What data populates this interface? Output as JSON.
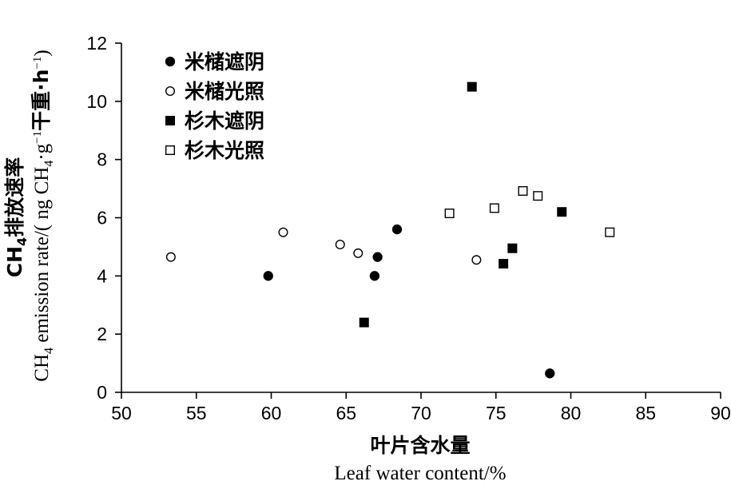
{
  "chart_data": {
    "type": "scatter",
    "xlabel_cn": "叶片含水量",
    "xlabel_en": "Leaf water content/%",
    "ylabel_cn_parts": [
      "CH",
      "4",
      "排放速率"
    ],
    "ylabel_en_parts": [
      "CH",
      "4",
      " emission rate/( ng CH",
      "4",
      "·g",
      "−1",
      "干重·h",
      "−1",
      ")"
    ],
    "xlim": [
      50,
      90
    ],
    "ylim": [
      0,
      12
    ],
    "x_ticks": [
      50,
      55,
      60,
      65,
      70,
      75,
      80,
      85,
      90
    ],
    "y_ticks": [
      0,
      2,
      4,
      6,
      8,
      10,
      12
    ],
    "x_tick_labels": [
      "50",
      "55",
      "60",
      "65",
      "70",
      "75",
      "80",
      "85",
      "90"
    ],
    "y_tick_labels": [
      "0",
      "2",
      "4",
      "6",
      "8",
      "10",
      "12"
    ],
    "legend_position": "top-left",
    "grid": false,
    "series": [
      {
        "name": "米槠遮阴",
        "marker": "filled-circle",
        "color": "#000000",
        "points": [
          [
            59.8,
            4.0
          ],
          [
            66.9,
            4.0
          ],
          [
            67.1,
            4.65
          ],
          [
            68.4,
            5.6
          ],
          [
            78.6,
            0.65
          ]
        ]
      },
      {
        "name": "米槠光照",
        "marker": "open-circle",
        "color": "#000000",
        "points": [
          [
            53.3,
            4.65
          ],
          [
            60.8,
            5.5
          ],
          [
            64.6,
            5.08
          ],
          [
            65.8,
            4.78
          ],
          [
            73.7,
            4.55
          ]
        ]
      },
      {
        "name": "杉木遮阴",
        "marker": "filled-square",
        "color": "#000000",
        "points": [
          [
            73.4,
            10.5
          ],
          [
            66.2,
            2.4
          ],
          [
            75.5,
            4.42
          ],
          [
            76.1,
            4.95
          ],
          [
            79.4,
            6.2
          ]
        ]
      },
      {
        "name": "杉木光照",
        "marker": "open-square",
        "color": "#000000",
        "points": [
          [
            71.9,
            6.15
          ],
          [
            74.9,
            6.33
          ],
          [
            76.8,
            6.92
          ],
          [
            77.8,
            6.75
          ],
          [
            82.6,
            5.5
          ]
        ]
      }
    ]
  }
}
